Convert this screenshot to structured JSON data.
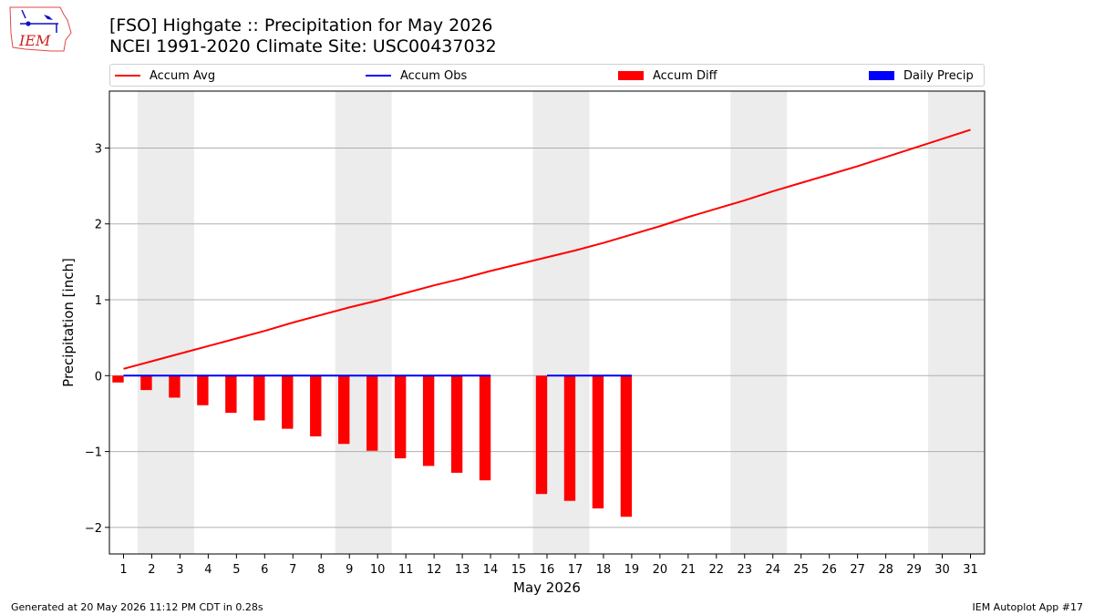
{
  "header": {
    "title": "[FSO] Highgate :: Precipitation for May 2026",
    "subtitle": "NCEI 1991-2020 Climate Site: USC00437032",
    "logo_text": "IEM"
  },
  "footer": {
    "generated": "Generated at 20 May 2026 11:12 PM CDT in 0.28s",
    "app": "IEM Autoplot App #17"
  },
  "colors": {
    "accum_avg": "#ff0000",
    "accum_obs": "#0000ff",
    "accum_diff": "#ff0000",
    "daily_precip": "#0000ff",
    "weekend_shade": "#ececec",
    "grid": "#b0b0b0"
  },
  "chart_data": {
    "type": "bar",
    "xlabel": "May 2026",
    "ylabel": "Precipitation [inch]",
    "xlim": [
      0.5,
      31.5
    ],
    "ylim": [
      -2.35,
      3.75
    ],
    "yticks": [
      -2,
      -1,
      0,
      1,
      2,
      3
    ],
    "ytick_labels": [
      "−2",
      "−1",
      "0",
      "1",
      "2",
      "3"
    ],
    "grid": "horizontal",
    "legend_position": "top",
    "days": [
      1,
      2,
      3,
      4,
      5,
      6,
      7,
      8,
      9,
      10,
      11,
      12,
      13,
      14,
      15,
      16,
      17,
      18,
      19,
      20,
      21,
      22,
      23,
      24,
      25,
      26,
      27,
      28,
      29,
      30,
      31
    ],
    "weekends": [
      [
        2,
        3
      ],
      [
        9,
        10
      ],
      [
        16,
        17
      ],
      [
        23,
        24
      ],
      [
        30,
        31
      ]
    ],
    "legend": [
      "Accum Avg",
      "Accum Obs",
      "Accum Diff",
      "Daily Precip"
    ],
    "series": [
      {
        "name": "Accum Avg",
        "kind": "line",
        "x": [
          1,
          2,
          3,
          4,
          5,
          6,
          7,
          8,
          9,
          10,
          11,
          12,
          13,
          14,
          15,
          16,
          17,
          18,
          19,
          20,
          21,
          22,
          23,
          24,
          25,
          26,
          27,
          28,
          29,
          30,
          31
        ],
        "values": [
          0.09,
          0.19,
          0.29,
          0.39,
          0.49,
          0.59,
          0.7,
          0.8,
          0.9,
          0.99,
          1.09,
          1.19,
          1.28,
          1.38,
          1.47,
          1.56,
          1.65,
          1.75,
          1.86,
          1.97,
          2.09,
          2.2,
          2.31,
          2.43,
          2.54,
          2.65,
          2.76,
          2.88,
          3.0,
          3.12,
          3.24
        ]
      },
      {
        "name": "Accum Obs",
        "kind": "line",
        "segments": [
          {
            "x": [
              1,
              2,
              3,
              4,
              5,
              6,
              7,
              8,
              9,
              10,
              11,
              12,
              13,
              14
            ],
            "values": [
              0,
              0,
              0,
              0,
              0,
              0,
              0,
              0,
              0,
              0,
              0,
              0,
              0,
              0
            ]
          },
          {
            "x": [
              16,
              17,
              18,
              19
            ],
            "values": [
              0,
              0,
              0,
              0
            ]
          }
        ]
      },
      {
        "name": "Accum Diff",
        "kind": "bar",
        "x": [
          1,
          2,
          3,
          4,
          5,
          6,
          7,
          8,
          9,
          10,
          11,
          12,
          13,
          14,
          16,
          17,
          18,
          19
        ],
        "values": [
          -0.09,
          -0.19,
          -0.29,
          -0.39,
          -0.49,
          -0.59,
          -0.7,
          -0.8,
          -0.9,
          -0.99,
          -1.09,
          -1.19,
          -1.28,
          -1.38,
          -1.56,
          -1.65,
          -1.75,
          -1.86
        ]
      },
      {
        "name": "Daily Precip",
        "kind": "bar",
        "x": [
          1,
          2,
          3,
          4,
          5,
          6,
          7,
          8,
          9,
          10,
          11,
          12,
          13,
          14,
          16,
          17,
          18,
          19
        ],
        "values": [
          0,
          0,
          0,
          0,
          0,
          0,
          0,
          0,
          0,
          0,
          0,
          0,
          0,
          0,
          0,
          0,
          0,
          0
        ]
      }
    ]
  }
}
